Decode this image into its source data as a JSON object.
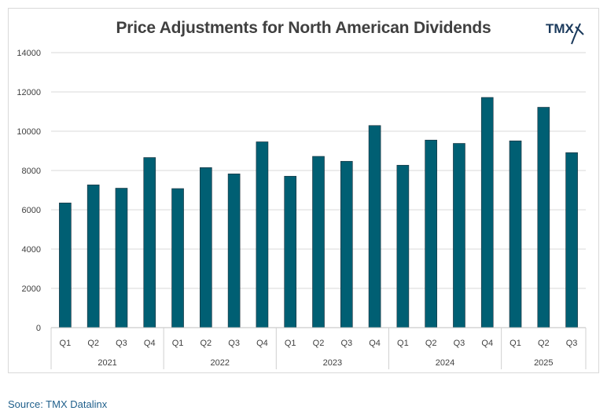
{
  "chart_data": {
    "type": "bar",
    "title": "Price Adjustments for North American Dividends",
    "groups": [
      {
        "label": "2021",
        "categories": [
          "Q1",
          "Q2",
          "Q3",
          "Q4"
        ]
      },
      {
        "label": "2022",
        "categories": [
          "Q1",
          "Q2",
          "Q3",
          "Q4"
        ]
      },
      {
        "label": "2023",
        "categories": [
          "Q1",
          "Q2",
          "Q3",
          "Q4"
        ]
      },
      {
        "label": "2024",
        "categories": [
          "Q1",
          "Q2",
          "Q3",
          "Q4"
        ]
      },
      {
        "label": "2025",
        "categories": [
          "Q1",
          "Q2",
          "Q3"
        ]
      }
    ],
    "values": [
      6350,
      7270,
      7100,
      8660,
      7080,
      8150,
      7830,
      9460,
      7710,
      8720,
      8470,
      10290,
      8270,
      9550,
      9380,
      11720,
      9510,
      11220,
      8910
    ],
    "ylim": [
      0,
      14000
    ],
    "yticks": [
      0,
      2000,
      4000,
      6000,
      8000,
      10000,
      12000,
      14000
    ],
    "grid": true,
    "bar_color": "#005f73",
    "xlabel": "",
    "ylabel": ""
  },
  "logo": {
    "text": "TMX"
  },
  "source": "Source: TMX Datalinx"
}
